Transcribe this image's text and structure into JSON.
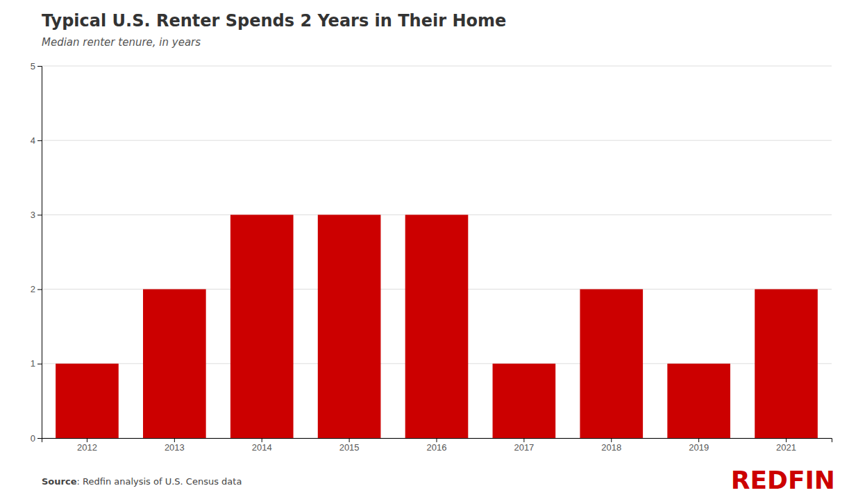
{
  "chart_data": {
    "type": "bar",
    "title": "Typical U.S. Renter Spends 2 Years in Their Home",
    "subtitle": "Median renter tenure, in years",
    "categories": [
      "2012",
      "2013",
      "2014",
      "2015",
      "2016",
      "2017",
      "2018",
      "2019",
      "2021"
    ],
    "values": [
      1,
      2,
      3,
      3,
      3,
      1,
      2,
      1,
      2
    ],
    "color": "#CC0000",
    "ylim": [
      0,
      5
    ],
    "yticks": [
      0,
      1,
      2,
      3,
      4,
      5
    ],
    "grid": true,
    "annotations": [
      "Source",
      ": Redfin analysis of U.S. Census data",
      "REDFIN"
    ]
  }
}
